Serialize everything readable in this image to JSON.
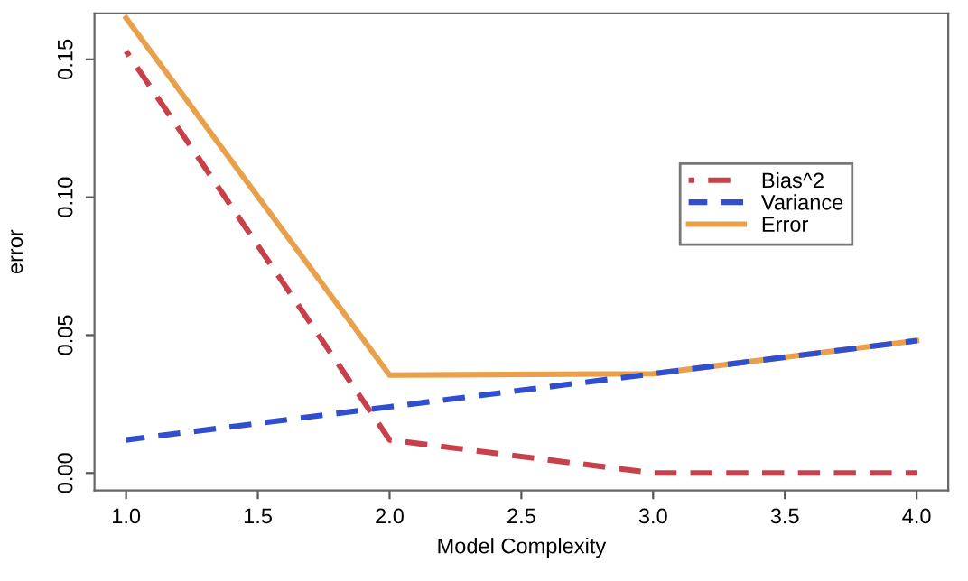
{
  "chart_data": {
    "type": "line",
    "xlabel": "Model Complexity",
    "ylabel": "error",
    "x": [
      1.0,
      2.0,
      3.0,
      4.0
    ],
    "series": [
      {
        "name": "Bias^2",
        "color": "#c8404a",
        "values": [
          0.153,
          0.012,
          0.0,
          0.0
        ],
        "line_style": "dashed"
      },
      {
        "name": "Variance",
        "color": "#2f4fcf",
        "values": [
          0.012,
          0.024,
          0.036,
          0.048
        ],
        "line_style": "dashed"
      },
      {
        "name": "Error",
        "color": "#e8a04a",
        "values": [
          0.165,
          0.0355,
          0.036,
          0.048
        ],
        "line_style": "solid"
      }
    ],
    "xlim": [
      0.88,
      4.12
    ],
    "ylim": [
      -0.0063,
      0.1667
    ],
    "xticks": [
      {
        "value": 1.0,
        "label": "1.0"
      },
      {
        "value": 1.5,
        "label": "1.5"
      },
      {
        "value": 2.0,
        "label": "2.0"
      },
      {
        "value": 2.5,
        "label": "2.5"
      },
      {
        "value": 3.0,
        "label": "3.0"
      },
      {
        "value": 3.5,
        "label": "3.5"
      },
      {
        "value": 4.0,
        "label": "4.0"
      }
    ],
    "yticks": [
      {
        "value": 0.0,
        "label": "0.00"
      },
      {
        "value": 0.05,
        "label": "0.05"
      },
      {
        "value": 0.1,
        "label": "0.10"
      },
      {
        "value": 0.15,
        "label": "0.15"
      }
    ],
    "grid": false,
    "legend": "right",
    "marker": "none"
  }
}
